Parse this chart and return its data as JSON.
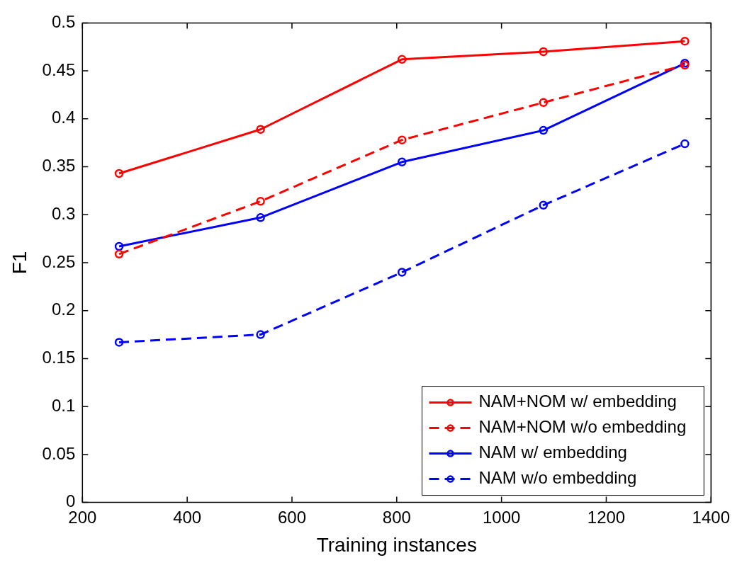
{
  "chart_data": {
    "type": "line",
    "xlabel": "Training instances",
    "ylabel": "F1",
    "x": [
      270,
      540,
      810,
      1080,
      1350
    ],
    "series": [
      {
        "name": "NAM+NOM w/ embedding",
        "color": "#ff0000",
        "line_style": "solid",
        "values": [
          0.343,
          0.389,
          0.462,
          0.47,
          0.481
        ]
      },
      {
        "name": "NAM+NOM w/o embedding",
        "color": "#ff0000",
        "line_style": "dashed",
        "values": [
          0.259,
          0.314,
          0.378,
          0.417,
          0.456
        ]
      },
      {
        "name": "NAM w/ embedding",
        "color": "#0000ff",
        "line_style": "solid",
        "values": [
          0.267,
          0.297,
          0.355,
          0.388,
          0.458
        ]
      },
      {
        "name": "NAM w/o embedding",
        "color": "#0000ff",
        "line_style": "dashed",
        "values": [
          0.167,
          0.175,
          0.24,
          0.31,
          0.374
        ]
      }
    ],
    "xlim": [
      200,
      1400
    ],
    "xticks": [
      200,
      400,
      600,
      800,
      1000,
      1200,
      1400
    ],
    "ylim": [
      0,
      0.5
    ],
    "yticks": [
      0,
      0.05,
      0.1,
      0.15,
      0.2,
      0.25,
      0.3,
      0.35,
      0.4,
      0.45,
      0.5
    ],
    "marker": "circle",
    "grid": false,
    "legend": "bottom right"
  }
}
